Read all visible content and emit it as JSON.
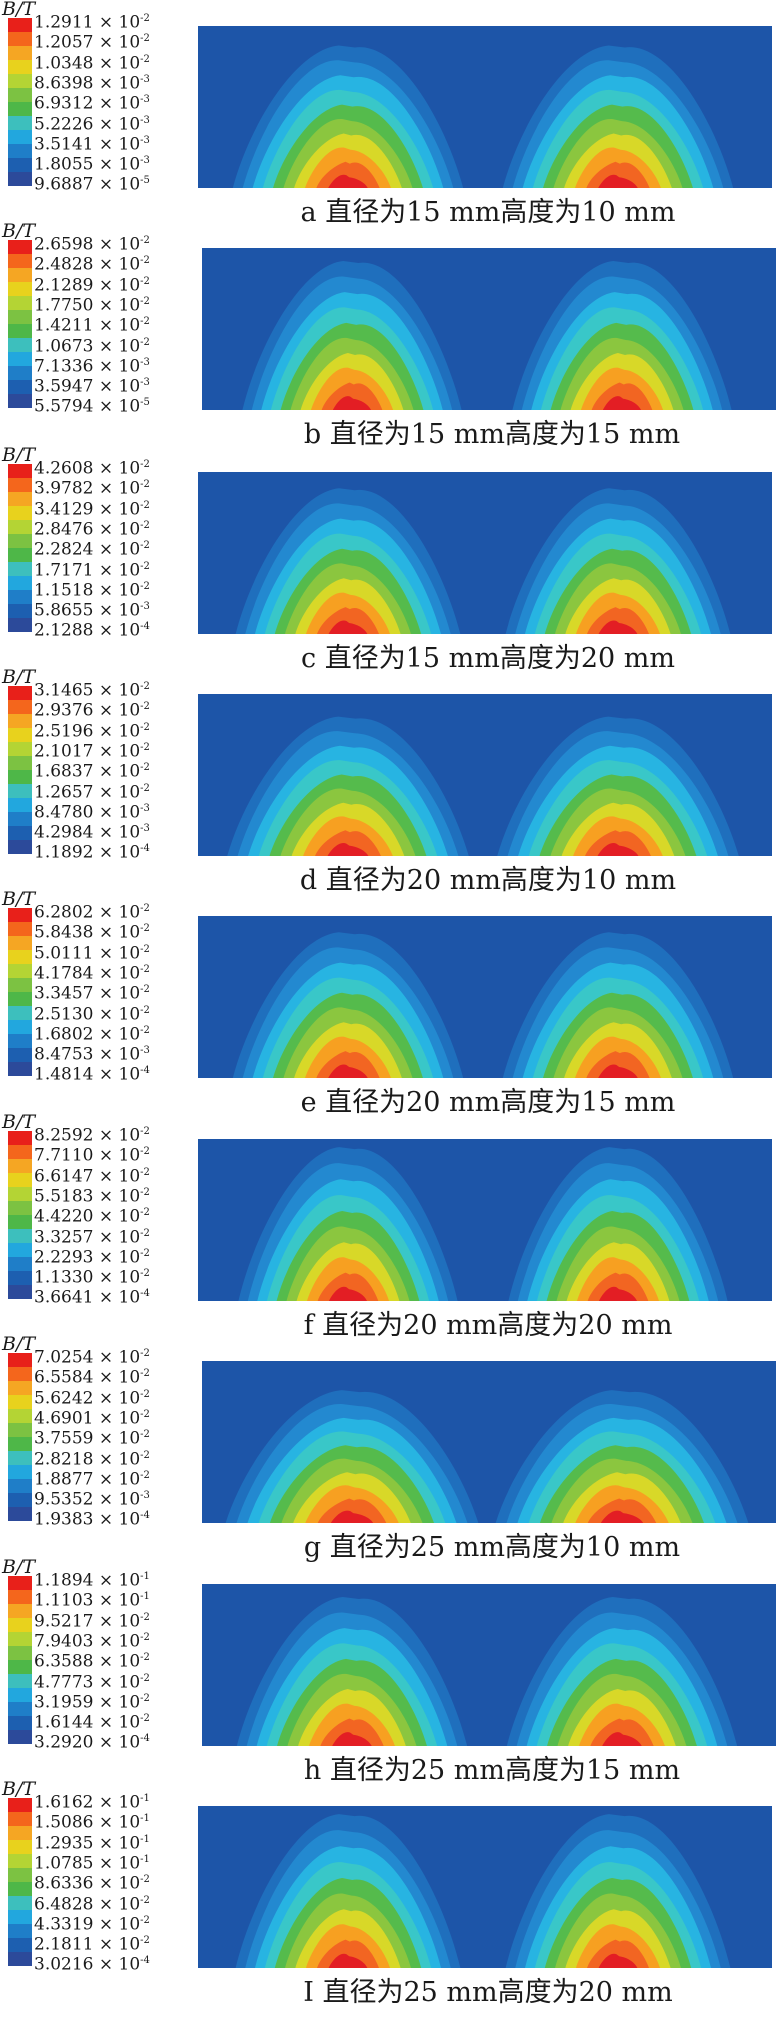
{
  "legend_title": "B/T",
  "colorbar_colors": [
    "#e8201a",
    "#f4661c",
    "#f5a623",
    "#e8d21d",
    "#b4d434",
    "#7cc242",
    "#4eb748",
    "#3dbfbd",
    "#22a7de",
    "#1f7ec8",
    "#1d5fb0",
    "#2c4a9a"
  ],
  "field_colors": [
    "#1d55a8",
    "#1f6fbd",
    "#2389d0",
    "#27b4e2",
    "#39c7c8",
    "#55bb4c",
    "#8bc63f",
    "#d8d828",
    "#f7a021",
    "#f26522",
    "#e31e24"
  ],
  "panels": [
    {
      "label": "a 直径为15 mm高度为10 mm",
      "ticks": [
        [
          "1.2911 × 10",
          "-2"
        ],
        [
          "1.2057 × 10",
          "-2"
        ],
        [
          "1.0348 × 10",
          "-2"
        ],
        [
          "8.6398 × 10",
          "-3"
        ],
        [
          "6.9312 × 10",
          "-3"
        ],
        [
          "5.2226 × 10",
          "-3"
        ],
        [
          "3.5141 × 10",
          "-3"
        ],
        [
          "1.8055 × 10",
          "-3"
        ],
        [
          "9.6887 × 10",
          "-5"
        ]
      ]
    },
    {
      "label": "b 直径为15 mm高度为15 mm",
      "ticks": [
        [
          "2.6598 × 10",
          "-2"
        ],
        [
          "2.4828 × 10",
          "-2"
        ],
        [
          "2.1289 × 10",
          "-2"
        ],
        [
          "1.7750 × 10",
          "-2"
        ],
        [
          "1.4211 × 10",
          "-2"
        ],
        [
          "1.0673 × 10",
          "-2"
        ],
        [
          "7.1336 × 10",
          "-3"
        ],
        [
          "3.5947 × 10",
          "-3"
        ],
        [
          "5.5794 × 10",
          "-5"
        ]
      ]
    },
    {
      "label": "c 直径为15 mm高度为20 mm",
      "ticks": [
        [
          "4.2608 × 10",
          "-2"
        ],
        [
          "3.9782 × 10",
          "-2"
        ],
        [
          "3.4129 × 10",
          "-2"
        ],
        [
          "2.8476 × 10",
          "-2"
        ],
        [
          "2.2824 × 10",
          "-2"
        ],
        [
          "1.7171 × 10",
          "-2"
        ],
        [
          "1.1518 × 10",
          "-2"
        ],
        [
          "5.8655 × 10",
          "-3"
        ],
        [
          "2.1288 × 10",
          "-4"
        ]
      ]
    },
    {
      "label": "d 直径为20 mm高度为10 mm",
      "ticks": [
        [
          "3.1465 × 10",
          "-2"
        ],
        [
          "2.9376 × 10",
          "-2"
        ],
        [
          "2.5196 × 10",
          "-2"
        ],
        [
          "2.1017 × 10",
          "-2"
        ],
        [
          "1.6837 × 10",
          "-2"
        ],
        [
          "1.2657 × 10",
          "-2"
        ],
        [
          "8.4780 × 10",
          "-3"
        ],
        [
          "4.2984 × 10",
          "-3"
        ],
        [
          "1.1892 × 10",
          "-4"
        ]
      ]
    },
    {
      "label": "e 直径为20 mm高度为15 mm",
      "ticks": [
        [
          "6.2802 × 10",
          "-2"
        ],
        [
          "5.8438 × 10",
          "-2"
        ],
        [
          "5.0111 × 10",
          "-2"
        ],
        [
          "4.1784 × 10",
          "-2"
        ],
        [
          "3.3457 × 10",
          "-2"
        ],
        [
          "2.5130 × 10",
          "-2"
        ],
        [
          "1.6802 × 10",
          "-2"
        ],
        [
          "8.4753 × 10",
          "-3"
        ],
        [
          "1.4814 × 10",
          "-4"
        ]
      ]
    },
    {
      "label": "f 直径为20 mm高度为20 mm",
      "ticks": [
        [
          "8.2592 × 10",
          "-2"
        ],
        [
          "7.7110 × 10",
          "-2"
        ],
        [
          "6.6147 × 10",
          "-2"
        ],
        [
          "5.5183 × 10",
          "-2"
        ],
        [
          "4.4220 × 10",
          "-2"
        ],
        [
          "3.3257 × 10",
          "-2"
        ],
        [
          "2.2293 × 10",
          "-2"
        ],
        [
          "1.1330 × 10",
          "-2"
        ],
        [
          "3.6641 × 10",
          "-4"
        ]
      ]
    },
    {
      "label": "g 直径为25 mm高度为10 mm",
      "ticks": [
        [
          "7.0254 × 10",
          "-2"
        ],
        [
          "6.5584 × 10",
          "-2"
        ],
        [
          "5.6242 × 10",
          "-2"
        ],
        [
          "4.6901 × 10",
          "-2"
        ],
        [
          "3.7559 × 10",
          "-2"
        ],
        [
          "2.8218 × 10",
          "-2"
        ],
        [
          "1.8877 × 10",
          "-2"
        ],
        [
          "9.5352 × 10",
          "-3"
        ],
        [
          "1.9383 × 10",
          "-4"
        ]
      ]
    },
    {
      "label": "h 直径为25 mm高度为15 mm",
      "ticks": [
        [
          "1.1894 × 10",
          "-1"
        ],
        [
          "1.1103 × 10",
          "-1"
        ],
        [
          "9.5217 × 10",
          "-2"
        ],
        [
          "7.9403 × 10",
          "-2"
        ],
        [
          "6.3588 × 10",
          "-2"
        ],
        [
          "4.7773 × 10",
          "-2"
        ],
        [
          "3.1959 × 10",
          "-2"
        ],
        [
          "1.6144 × 10",
          "-2"
        ],
        [
          "3.2920 × 10",
          "-4"
        ]
      ]
    },
    {
      "label": "I 直径为25 mm高度为20 mm",
      "ticks": [
        [
          "1.6162 × 10",
          "-1"
        ],
        [
          "1.5086 × 10",
          "-1"
        ],
        [
          "1.2935 × 10",
          "-1"
        ],
        [
          "1.0785 × 10",
          "-1"
        ],
        [
          "8.6336 × 10",
          "-2"
        ],
        [
          "6.4828 × 10",
          "-2"
        ],
        [
          "4.3319 × 10",
          "-2"
        ],
        [
          "2.1811 × 10",
          "-2"
        ],
        [
          "3.0216 × 10",
          "-4"
        ]
      ]
    }
  ]
}
